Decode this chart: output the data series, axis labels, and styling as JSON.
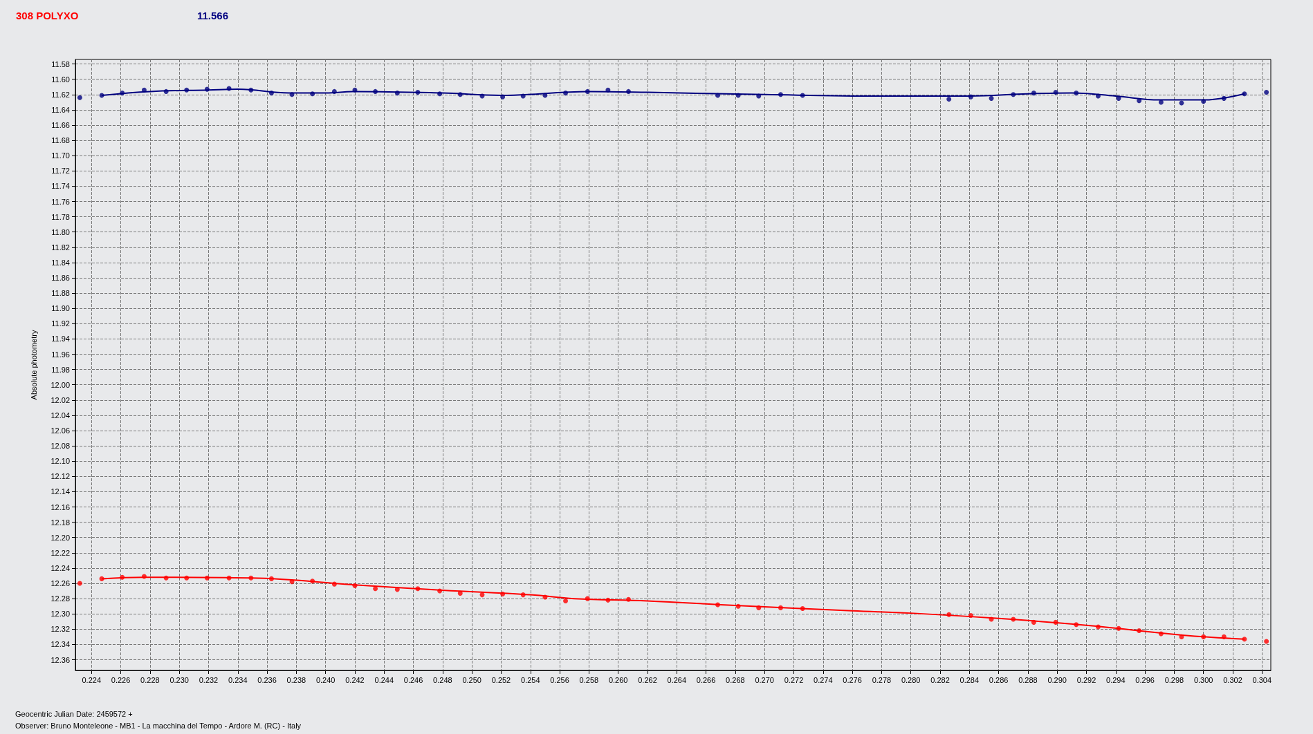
{
  "chart_data": {
    "type": "scatter",
    "title": "308 POLYXO",
    "subtitle": "11.566",
    "ylabel": "Absolute photometry",
    "annotations": [
      "Geocentric Julian Date: 2459572 +",
      "Observer: Bruno Monteleone - MB1 - La macchina del Tempo - Ardore M. (RC) - Italy"
    ],
    "x": [
      0.2232,
      0.2247,
      0.2261,
      0.2276,
      0.2291,
      0.2305,
      0.2319,
      0.2334,
      0.2349,
      0.2363,
      0.2377,
      0.2391,
      0.2406,
      0.242,
      0.2434,
      0.2449,
      0.2463,
      0.2478,
      0.2492,
      0.2507,
      0.2521,
      0.2535,
      0.255,
      0.2564,
      0.2579,
      0.2593,
      0.2607,
      0.2668,
      0.2682,
      0.2696,
      0.2711,
      0.2726,
      0.2826,
      0.2841,
      0.2855,
      0.287,
      0.2884,
      0.2899,
      0.2913,
      0.2928,
      0.2942,
      0.2956,
      0.2971,
      0.2985,
      0.3,
      0.3014,
      0.3028,
      0.3043
    ],
    "series": [
      {
        "color": "#000080",
        "values": [
          11.624,
          11.621,
          11.618,
          11.614,
          11.616,
          11.614,
          11.613,
          11.612,
          11.614,
          11.618,
          11.62,
          11.619,
          11.616,
          11.614,
          11.616,
          11.618,
          11.617,
          11.619,
          11.62,
          11.622,
          11.623,
          11.622,
          11.621,
          11.618,
          11.616,
          11.614,
          11.616,
          11.621,
          11.621,
          11.622,
          11.62,
          11.621,
          11.626,
          11.623,
          11.625,
          11.62,
          11.618,
          11.617,
          11.618,
          11.622,
          11.625,
          11.628,
          11.63,
          11.631,
          11.629,
          11.625,
          11.619,
          11.617
        ]
      },
      {
        "color": "#ff0000",
        "values": [
          12.26,
          12.254,
          12.252,
          12.251,
          12.253,
          12.253,
          12.253,
          12.253,
          12.253,
          12.254,
          12.258,
          12.257,
          12.261,
          12.263,
          12.267,
          12.268,
          12.267,
          12.27,
          12.273,
          12.275,
          12.274,
          12.275,
          12.278,
          12.283,
          12.28,
          12.282,
          12.281,
          12.288,
          12.29,
          12.292,
          12.292,
          12.293,
          12.301,
          12.302,
          12.307,
          12.307,
          12.311,
          12.311,
          12.314,
          12.317,
          12.319,
          12.322,
          12.326,
          12.33,
          12.33,
          12.33,
          12.333,
          12.336
        ]
      },
      {
        "type": "line",
        "marker": "none",
        "color": "#000080",
        "x": [
          0.2247,
          0.228,
          0.232,
          0.234,
          0.2375,
          0.24,
          0.242,
          0.248,
          0.252,
          0.258,
          0.262,
          0.27,
          0.278,
          0.284,
          0.288,
          0.291,
          0.294,
          0.297,
          0.3,
          0.3028
        ],
        "values": [
          11.621,
          11.616,
          11.614,
          11.613,
          11.618,
          11.618,
          11.616,
          11.618,
          11.621,
          11.616,
          11.617,
          11.62,
          11.622,
          11.622,
          11.619,
          11.618,
          11.622,
          11.627,
          11.627,
          11.619
        ]
      },
      {
        "type": "line",
        "marker": "none",
        "color": "#ff0000",
        "x": [
          0.2247,
          0.2276,
          0.2349,
          0.242,
          0.248,
          0.254,
          0.257,
          0.262,
          0.268,
          0.276,
          0.28,
          0.286,
          0.292,
          0.2987,
          0.3028
        ],
        "values": [
          12.254,
          12.252,
          12.253,
          12.262,
          12.269,
          12.275,
          12.28,
          12.283,
          12.289,
          12.296,
          12.299,
          12.306,
          12.315,
          12.328,
          12.333
        ]
      }
    ],
    "xlim": [
      0.2229,
      0.3046
    ],
    "xticks": [
      0.224,
      0.226,
      0.228,
      {
        "value": 0.23,
        "label": "0.230"
      },
      0.232,
      0.234,
      0.236,
      0.238,
      {
        "value": 0.24,
        "label": "0.240"
      },
      0.242,
      0.244,
      0.246,
      0.248,
      {
        "value": 0.25,
        "label": "0.250"
      },
      0.252,
      0.254,
      0.256,
      0.258,
      {
        "value": 0.26,
        "label": "0.260"
      },
      0.262,
      0.264,
      0.266,
      0.268,
      {
        "value": 0.27,
        "label": "0.270"
      },
      0.272,
      0.274,
      0.276,
      0.278,
      {
        "value": 0.28,
        "label": "0.280"
      },
      0.282,
      0.284,
      0.286,
      0.288,
      {
        "value": 0.29,
        "label": "0.290"
      },
      0.292,
      0.294,
      0.296,
      0.298,
      {
        "value": 0.3,
        "label": "0.300"
      },
      0.302,
      0.304
    ],
    "ylim": [
      12.374,
      11.574
    ],
    "yticks": [
      11.58,
      {
        "value": 11.6,
        "label": "11.60"
      },
      11.62,
      11.64,
      11.66,
      11.68,
      {
        "value": 11.7,
        "label": "11.70"
      },
      11.72,
      11.74,
      11.76,
      11.78,
      {
        "value": 11.8,
        "label": "11.80"
      },
      11.82,
      11.84,
      11.86,
      11.88,
      {
        "value": 11.9,
        "label": "11.90"
      },
      11.92,
      11.94,
      11.96,
      11.98,
      {
        "value": 12,
        "label": "12.00"
      },
      12.02,
      12.04,
      12.06,
      12.08,
      {
        "value": 12.1,
        "label": "12.10"
      },
      12.12,
      12.14,
      12.16,
      12.18,
      {
        "value": 12.2,
        "label": "12.20"
      },
      12.22,
      12.24,
      12.26,
      12.28,
      {
        "value": 12.3,
        "label": "12.30"
      },
      12.32,
      12.34,
      12.36
    ],
    "grid": true,
    "marker": "circle"
  }
}
